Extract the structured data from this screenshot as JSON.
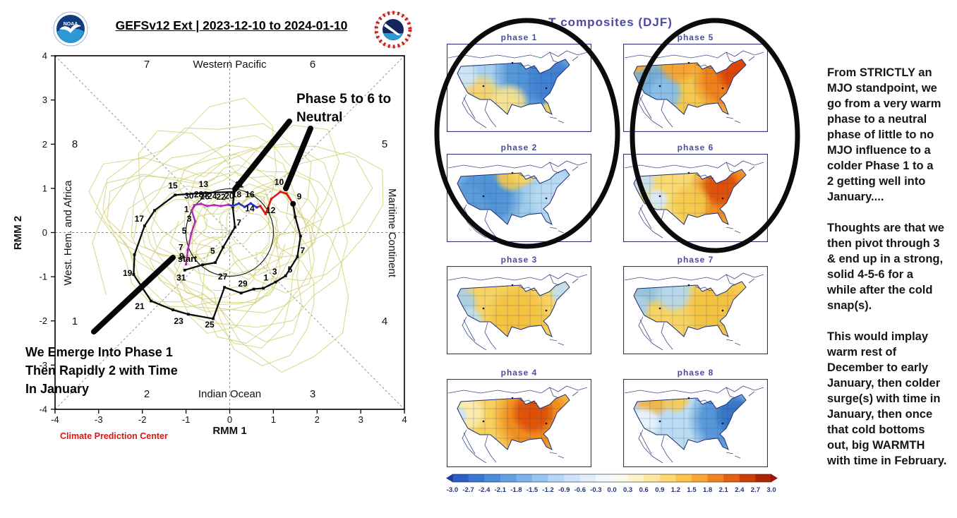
{
  "logos": {
    "noaa": "NOAA",
    "nws": "National Weather Service"
  },
  "commentary": {
    "paragraphs": [
      "From STRICTLY an\nMJO standpoint, we\ngo from a very warm\nphase to a neutral\nphase of little to no\nMJO influence to a\ncolder Phase 1 to a\n2 getting well into\nJanuary....",
      "Thoughts are that we\nthen pivot through 3\n& end up in a strong,\nsolid 4-5-6 for a\nwhile after the cold\nsnap(s).",
      "This would implay\nwarm rest of\nDecember to early\nJanuary, then colder\nsurge(s) with time in\nJanuary, then once\nthat cold bottoms\nout, big WARMTH\nwith time in February."
    ]
  },
  "chart_data": [
    {
      "type": "line",
      "id": "mjo-phase-space-diagram",
      "title": "GEFSv12 Ext | 2023-12-10 to 2024-01-10",
      "xlabel": "RMM 1",
      "ylabel": "RMM 2",
      "xlim": [
        -4,
        4
      ],
      "ylim": [
        -4,
        4
      ],
      "xticks": [
        -4,
        -3,
        -2,
        -1,
        0,
        1,
        2,
        3,
        4
      ],
      "yticks": [
        -4,
        -3,
        -2,
        -1,
        0,
        1,
        2,
        3,
        4
      ],
      "unit_circle_radius": 1,
      "grid": "dashed crosshair and diagonals",
      "region_labels": {
        "top": "Western Pacific",
        "bottom": "Indian Ocean",
        "left": "West. Hem. and Africa",
        "right": "Maritime Continent"
      },
      "phase_numbers": {
        "top_left": "7",
        "top_right": "6",
        "upper_left": "8",
        "upper_right": "5",
        "lower_left": "1",
        "lower_right": "4",
        "bottom_left": "2",
        "bottom_right": "3"
      },
      "credit": "Climate Prediction Center",
      "start_label": "start",
      "ensemble_members_color": "#d0d075",
      "annotations": [
        {
          "text": "Phase 5 to 6 to\nNeutral"
        },
        {
          "text": "We Emerge Into Phase 1\nThen Rapidly 2 with Time\nIn January"
        }
      ],
      "series": [
        {
          "name": "observed (black)",
          "color": "#0a0a0a",
          "points": [
            {
              "x": -1.03,
              "y": -0.85,
              "l": "31",
              "lx": -0.08,
              "ly": -0.24
            },
            {
              "x": -0.62,
              "y": -0.73
            },
            {
              "x": -0.33,
              "y": -0.68,
              "l": "5",
              "lx": -0.06,
              "ly": 0.2
            },
            {
              "x": -0.15,
              "y": -0.33
            },
            {
              "x": 0.12,
              "y": 0.12,
              "l": "7",
              "lx": 0.09,
              "ly": 0.04
            },
            {
              "x": 0.07,
              "y": 0.58
            },
            {
              "x": 0.1,
              "y": 0.92,
              "l": "11",
              "lx": 0.12,
              "ly": 0.1
            },
            {
              "x": -0.55,
              "y": 0.9,
              "l": "13",
              "lx": -0.05,
              "ly": 0.13
            },
            {
              "x": -1.25,
              "y": 0.85,
              "l": "15",
              "lx": -0.05,
              "ly": 0.15
            },
            {
              "x": -1.72,
              "y": 0.5
            },
            {
              "x": -1.95,
              "y": 0.15,
              "l": "17",
              "lx": -0.12,
              "ly": 0.1
            },
            {
              "x": -2.18,
              "y": -0.5
            },
            {
              "x": -2.2,
              "y": -0.95,
              "l": "19",
              "lx": -0.14,
              "ly": -0.03
            },
            {
              "x": -1.8,
              "y": -1.55,
              "l": "21",
              "lx": -0.26,
              "ly": -0.18
            },
            {
              "x": -1.3,
              "y": -1.75
            },
            {
              "x": -0.95,
              "y": -1.85,
              "l": "23",
              "lx": -0.22,
              "ly": -0.22
            },
            {
              "x": -0.38,
              "y": -1.95,
              "l": "25",
              "lx": -0.08,
              "ly": -0.2
            },
            {
              "x": -0.12,
              "y": -1.24,
              "l": "27",
              "lx": -0.04,
              "ly": 0.18
            },
            {
              "x": 0.26,
              "y": -1.37,
              "l": "29",
              "lx": 0.04,
              "ly": 0.15
            },
            {
              "x": 0.55,
              "y": -1.28
            },
            {
              "x": 0.77,
              "y": -1.26,
              "l": "1",
              "lx": 0.06,
              "ly": 0.17
            },
            {
              "x": 1.05,
              "y": -1.12,
              "l": "3",
              "lx": -0.02,
              "ly": 0.17
            },
            {
              "x": 1.28,
              "y": -0.98,
              "l": "5",
              "lx": 0.1,
              "ly": 0.08
            },
            {
              "x": 1.55,
              "y": -0.55,
              "l": "7",
              "lx": 0.12,
              "ly": 0.08
            },
            {
              "x": 1.62,
              "y": -0.08
            },
            {
              "x": 1.5,
              "y": 0.35
            },
            {
              "x": 1.45,
              "y": 0.65,
              "l": "9",
              "lx": 0.14,
              "ly": 0.1
            }
          ]
        },
        {
          "name": "forecast week 1 (red)",
          "color": "#dd1511",
          "points": [
            {
              "x": 1.45,
              "y": 0.65
            },
            {
              "x": 1.3,
              "y": 0.88
            },
            {
              "x": 1.16,
              "y": 0.92,
              "l": "10",
              "lx": -0.03,
              "ly": 0.16
            },
            {
              "x": 0.95,
              "y": 0.76
            },
            {
              "x": 0.82,
              "y": 0.42,
              "l": "12",
              "lx": 0.12,
              "ly": 0.02
            },
            {
              "x": 0.7,
              "y": 0.6,
              "l": "14",
              "lx": -0.24,
              "ly": -0.12
            },
            {
              "x": 0.62,
              "y": 0.57
            }
          ]
        },
        {
          "name": "forecast week 2 (blue)",
          "color": "#2436cc",
          "points": [
            {
              "x": 0.62,
              "y": 0.57
            },
            {
              "x": 0.48,
              "y": 0.66,
              "l": "16",
              "lx": -0.02,
              "ly": 0.14
            },
            {
              "x": 0.34,
              "y": 0.58
            },
            {
              "x": 0.21,
              "y": 0.66,
              "l": "18",
              "lx": -0.05,
              "ly": 0.14
            },
            {
              "x": 0.07,
              "y": 0.6
            },
            {
              "x": -0.03,
              "y": 0.63,
              "l": "20",
              "lx": 0.02,
              "ly": 0.14
            }
          ]
        },
        {
          "name": "forecast weeks 3-4 (magenta)",
          "color": "#b428b4",
          "points": [
            {
              "x": -0.03,
              "y": 0.63
            },
            {
              "x": -0.2,
              "y": 0.6,
              "l": "22",
              "lx": 0.0,
              "ly": 0.14
            },
            {
              "x": -0.36,
              "y": 0.62,
              "l": "24",
              "lx": -0.04,
              "ly": 0.14
            },
            {
              "x": -0.52,
              "y": 0.6,
              "l": "26",
              "lx": -0.05,
              "ly": 0.15
            },
            {
              "x": -0.66,
              "y": 0.65,
              "l": "28",
              "lx": -0.05,
              "ly": 0.15
            },
            {
              "x": -0.81,
              "y": 0.62,
              "l": "30",
              "lx": -0.12,
              "ly": 0.15
            },
            {
              "x": -0.87,
              "y": 0.5,
              "l": "1",
              "lx": -0.12,
              "ly": -0.04
            },
            {
              "x": -0.79,
              "y": 0.25,
              "l": "3",
              "lx": -0.14,
              "ly": 0.0
            },
            {
              "x": -0.88,
              "y": -0.02,
              "l": "5",
              "lx": -0.16,
              "ly": 0.0
            },
            {
              "x": -0.96,
              "y": -0.4,
              "l": "7",
              "lx": -0.16,
              "ly": 0.0
            },
            {
              "x": -1.0,
              "y": -0.72,
              "l": "9",
              "lx": -0.1,
              "ly": 0.12
            }
          ]
        }
      ]
    },
    {
      "type": "heatmap",
      "id": "t-composites-by-phase",
      "title": "T composites (DJF)",
      "accent_color": "#4a4aa2",
      "circled_panels": "phases 1-2 and phases 5-6",
      "panels": [
        {
          "label": "phase 1",
          "summary": "cold east/north, mild warmth southwest and Florida",
          "field": {
            "base": "#a8d2ee",
            "blobs": [
              [
                125,
                42,
                62,
                "#4a8fd4"
              ],
              [
                150,
                55,
                40,
                "#3f7fd0"
              ],
              [
                45,
                78,
                38,
                "#f8d468"
              ],
              [
                88,
                84,
                30,
                "#fae48c"
              ],
              [
                146,
                92,
                13,
                "#f6d460"
              ],
              [
                25,
                45,
                22,
                "#cfe5f5"
              ]
            ]
          }
        },
        {
          "label": "phase 2",
          "summary": "cold west and center, warm strip northern plains",
          "field": {
            "base": "#9ccbea",
            "blobs": [
              [
                55,
                62,
                55,
                "#4a8fd4"
              ],
              [
                30,
                75,
                35,
                "#5f9dd8"
              ],
              [
                92,
                30,
                26,
                "#f6c94a"
              ],
              [
                110,
                28,
                20,
                "#f8d468"
              ],
              [
                155,
                60,
                45,
                "#bcdcf2"
              ]
            ]
          }
        },
        {
          "label": "phase 3",
          "summary": "warm most areas, cool west coast and northeast",
          "field": {
            "base": "#f6d362",
            "blobs": [
              [
                20,
                52,
                26,
                "#a6d0ec"
              ],
              [
                32,
                78,
                22,
                "#c2e0f2"
              ],
              [
                165,
                38,
                20,
                "#bfe0f4"
              ],
              [
                100,
                72,
                48,
                "#f3c13e"
              ]
            ]
          }
        },
        {
          "label": "phase 4",
          "summary": "very warm center-east, pale west",
          "field": {
            "base": "#f7d15c",
            "blobs": [
              [
                125,
                55,
                62,
                "#ef8316"
              ],
              [
                122,
                48,
                32,
                "#dd4e08"
              ],
              [
                28,
                48,
                30,
                "#fdecb0"
              ],
              [
                17,
                52,
                14,
                "#cfe4f4"
              ]
            ]
          }
        },
        {
          "label": "phase 5",
          "summary": "very warm east/north, cold interior west",
          "field": {
            "base": "#f5c94f",
            "blobs": [
              [
                42,
                62,
                42,
                "#6aaade"
              ],
              [
                58,
                72,
                28,
                "#8cc0e8"
              ],
              [
                150,
                48,
                55,
                "#ee7712"
              ],
              [
                160,
                40,
                30,
                "#dd4206"
              ],
              [
                80,
                27,
                32,
                "#f5a22c"
              ],
              [
                20,
                28,
                14,
                "#f3a93a"
              ]
            ]
          }
        },
        {
          "label": "phase 6",
          "summary": "very warm east half, pale west with cool patches",
          "field": {
            "base": "#f8da70",
            "blobs": [
              [
                145,
                55,
                55,
                "#ee8214"
              ],
              [
                140,
                48,
                30,
                "#dd4e08"
              ],
              [
                28,
                40,
                20,
                "#c6e0f4"
              ],
              [
                48,
                65,
                18,
                "#d8ebf8"
              ],
              [
                95,
                70,
                30,
                "#f6c94a"
              ]
            ]
          }
        },
        {
          "label": "phase 7",
          "summary": "warm east/south, cool northwest",
          "field": {
            "base": "#f6d362",
            "blobs": [
              [
                35,
                28,
                30,
                "#8cc2e6"
              ],
              [
                72,
                38,
                30,
                "#b4d8f0"
              ],
              [
                20,
                58,
                20,
                "#a6d0ec"
              ],
              [
                135,
                62,
                50,
                "#f3c13e"
              ]
            ]
          }
        },
        {
          "label": "phase 8",
          "summary": "cold east half, warm northwest",
          "field": {
            "base": "#bcdcf2",
            "blobs": [
              [
                145,
                58,
                55,
                "#4a8fd4"
              ],
              [
                158,
                52,
                30,
                "#3572c4"
              ],
              [
                42,
                26,
                30,
                "#f5b33c"
              ],
              [
                75,
                28,
                22,
                "#f7ca50"
              ],
              [
                30,
                62,
                24,
                "#eaf4fb"
              ]
            ]
          }
        }
      ],
      "colorbar": {
        "ticks": [
          "-3.0",
          "-2.7",
          "-2.4",
          "-2.1",
          "-1.8",
          "-1.5",
          "-1.2",
          "-0.9",
          "-0.6",
          "-0.3",
          "0.0",
          "0.3",
          "0.6",
          "0.9",
          "1.2",
          "1.5",
          "1.8",
          "2.1",
          "2.4",
          "2.7",
          "3.0"
        ],
        "colors": [
          "#2a5fc4",
          "#3a76cf",
          "#4e8bd8",
          "#63a0e0",
          "#7cb3e8",
          "#97c5ee",
          "#b3d6f4",
          "#cde4f8",
          "#e2effb",
          "#f2f8fd",
          "#fdfaec",
          "#fdf2c8",
          "#fde79e",
          "#fcd972",
          "#fbc24c",
          "#f8a534",
          "#f0831f",
          "#e2600f",
          "#cc3f08",
          "#ad2404"
        ],
        "left_cap": "#1c3f9e",
        "right_cap": "#a01604"
      }
    }
  ]
}
